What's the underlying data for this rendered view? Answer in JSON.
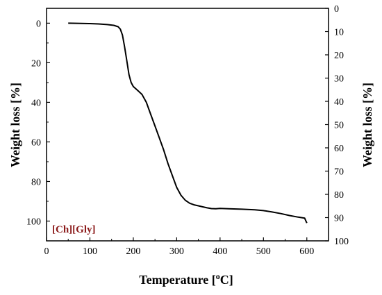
{
  "chart_data": {
    "type": "line",
    "title": "",
    "xlabel": "Temperature [",
    "xlabel_sup": "o",
    "xlabel_suffix": "C]",
    "ylabel": "Weight loss [%]",
    "y2label": "Weight loss [%]",
    "annotation": "[Ch][Gly]",
    "xlim": [
      0,
      650
    ],
    "ylim": [
      0,
      110
    ],
    "y_inverted": true,
    "y2lim": [
      0,
      100
    ],
    "y2_inverted": true,
    "x_ticks": [
      0,
      100,
      200,
      300,
      400,
      500,
      600
    ],
    "y_ticks": [
      0,
      20,
      40,
      60,
      80,
      100
    ],
    "y2_ticks": [
      0,
      10,
      20,
      30,
      40,
      50,
      60,
      70,
      80,
      90,
      100
    ],
    "grid": false,
    "legend": "none",
    "colors": {
      "line": "#000000",
      "annotation": "#8b1a1a"
    },
    "series": [
      {
        "x": [
          50,
          80,
          100,
          120,
          140,
          155,
          165,
          170,
          175,
          180,
          185,
          190,
          195,
          200,
          210,
          220,
          230,
          240,
          250,
          260,
          270,
          280,
          290,
          300,
          310,
          320,
          330,
          340,
          350,
          360,
          370,
          380,
          390,
          400,
          420,
          450,
          480,
          500,
          520,
          540,
          560,
          580,
          595,
          598,
          600
        ],
        "y": [
          0,
          0.1,
          0.2,
          0.4,
          0.7,
          1.1,
          1.8,
          3,
          6,
          12,
          19,
          26,
          30,
          32,
          34,
          36,
          40,
          46,
          52,
          58,
          64,
          71,
          77,
          83,
          87,
          89.5,
          91,
          91.8,
          92.3,
          92.8,
          93.3,
          93.7,
          93.8,
          93.6,
          93.8,
          94,
          94.3,
          94.7,
          95.4,
          96.2,
          97.2,
          98,
          98.5,
          100,
          101
        ]
      }
    ]
  }
}
